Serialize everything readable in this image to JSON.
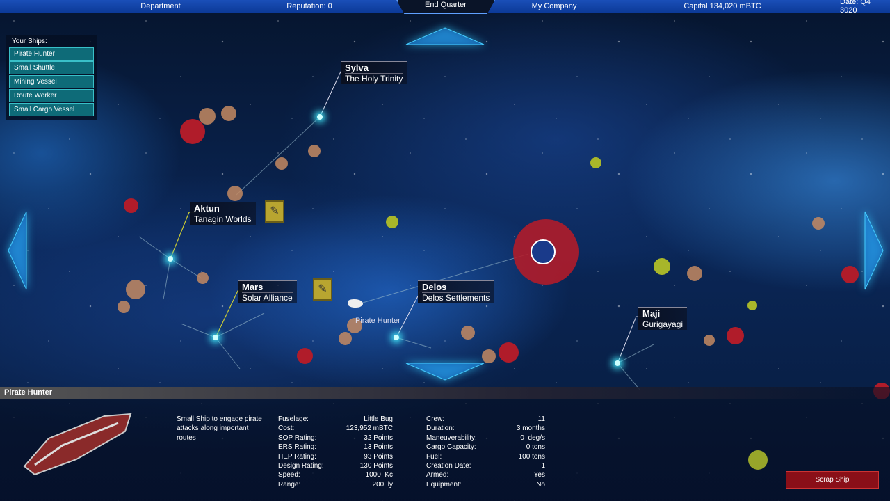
{
  "topbar": {
    "department": "Department",
    "reputation": "Reputation: 0",
    "end_quarter": "End Quarter",
    "company": "My Company",
    "capital": "Capital 134,020 mBTC",
    "date": "Date: Q4 3020"
  },
  "ships": {
    "header": "Your Ships:",
    "items": [
      "Pirate Hunter",
      "Small Shuttle",
      "Mining Vessel",
      "Route Worker",
      "Small Cargo Vessel"
    ]
  },
  "systems": [
    {
      "name": "Sylva",
      "faction": "The Holy Trinity"
    },
    {
      "name": "Aktun",
      "faction": "Tanagin Worlds"
    },
    {
      "name": "Mars",
      "faction": "Solar Alliance"
    },
    {
      "name": "Delos",
      "faction": "Delos Settlements"
    },
    {
      "name": "Maji",
      "faction": "Gurigayagi"
    }
  ],
  "map_ship_label": "Pirate Hunter",
  "panel": {
    "title": "Pirate Hunter",
    "description": "Small Ship to engage pirate attacks along important routes",
    "stats_left": [
      [
        "Fuselage:",
        "Little Bug"
      ],
      [
        "Cost:",
        "123,952 mBTC"
      ],
      [
        "SOP Rating:",
        "32 Points"
      ],
      [
        "ERS Rating:",
        "13 Points"
      ],
      [
        "HEP Rating:",
        "93 Points"
      ],
      [
        "Design Rating:",
        "130 Points"
      ],
      [
        "Speed:",
        "1000  Kc"
      ],
      [
        "Range:",
        "200  ly"
      ]
    ],
    "stats_right": [
      [
        "Crew:",
        "11"
      ],
      [
        "Duration:",
        "3 months"
      ],
      [
        "Maneuverability:",
        "0  deg/s"
      ],
      [
        "Cargo Capacity:",
        "0 tons"
      ],
      [
        "Fuel:",
        "100 tons"
      ],
      [
        "Creation Date:",
        "1"
      ],
      [
        "Armed:",
        "Yes"
      ],
      [
        "Equipment:",
        "No"
      ]
    ],
    "scrap_label": "Scrap Ship"
  },
  "colors": {
    "topbar": "#0c3a98",
    "ship_button": "#0e6b78",
    "scrap": "#8a0f18",
    "threat": "#b01c2a"
  }
}
